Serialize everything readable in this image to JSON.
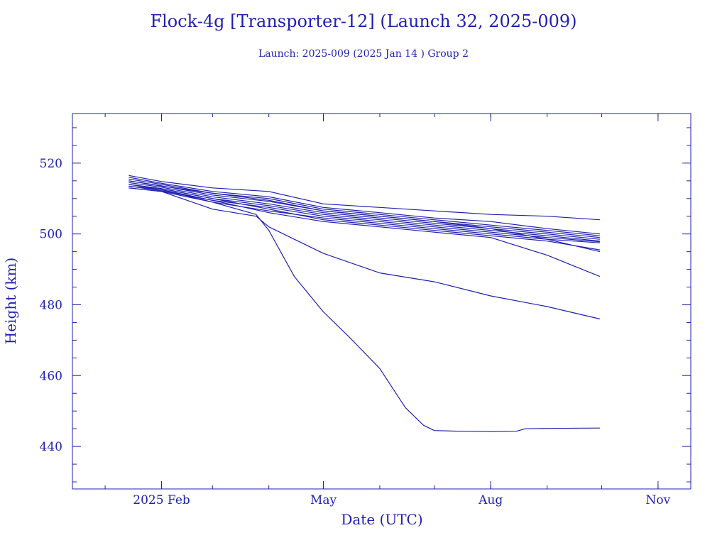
{
  "chart_data": {
    "type": "line",
    "title": "Flock-4g [Transporter-12] (Launch 32, 2025-009)",
    "subtitle": "Launch: 2025-009  (2025 Jan 14 )  Group 2",
    "xlabel": "Date (UTC)",
    "ylabel": "Height (km)",
    "xlim": [
      "2024-12-14",
      "2025-11-19"
    ],
    "ylim": [
      428,
      534
    ],
    "x_ticks": [
      {
        "label": "2025 Feb",
        "date": "2025-02-01"
      },
      {
        "label": "May",
        "date": "2025-05-01"
      },
      {
        "label": "Aug",
        "date": "2025-08-01"
      },
      {
        "label": "Nov",
        "date": "2025-11-01"
      }
    ],
    "y_ticks": [
      440,
      460,
      480,
      500,
      520
    ],
    "grid": false,
    "legend": "none",
    "line_color": "#1f1fb0",
    "series": [
      {
        "x": [
          "2025-01-14",
          "2025-02-01",
          "2025-03-01",
          "2025-04-01",
          "2025-05-01",
          "2025-06-01",
          "2025-07-01",
          "2025-08-01",
          "2025-09-01",
          "2025-09-30"
        ],
        "values": [
          516.5,
          514.8,
          513.0,
          512.0,
          508.5,
          507.5,
          506.5,
          505.5,
          505.0,
          504.0
        ]
      },
      {
        "x": [
          "2025-01-14",
          "2025-02-01",
          "2025-03-01",
          "2025-04-01",
          "2025-05-01",
          "2025-06-01",
          "2025-07-01",
          "2025-08-01",
          "2025-09-01",
          "2025-09-30"
        ],
        "values": [
          516.0,
          514.3,
          512.0,
          510.5,
          507.5,
          506.0,
          504.5,
          503.5,
          501.5,
          500.0
        ]
      },
      {
        "x": [
          "2025-01-14",
          "2025-02-01",
          "2025-03-01",
          "2025-04-01",
          "2025-05-01",
          "2025-06-01",
          "2025-07-01",
          "2025-08-01",
          "2025-09-01",
          "2025-09-30"
        ],
        "values": [
          515.5,
          514.0,
          511.5,
          510.0,
          507.0,
          505.5,
          504.0,
          502.5,
          501.0,
          499.5
        ]
      },
      {
        "x": [
          "2025-01-14",
          "2025-02-01",
          "2025-03-01",
          "2025-04-01",
          "2025-05-01",
          "2025-06-01",
          "2025-07-01",
          "2025-08-01",
          "2025-09-01",
          "2025-09-30"
        ],
        "values": [
          515.0,
          513.6,
          511.0,
          509.2,
          506.5,
          505.0,
          503.5,
          502.0,
          500.5,
          499.0
        ]
      },
      {
        "x": [
          "2025-01-14",
          "2025-02-01",
          "2025-03-01",
          "2025-04-01",
          "2025-05-01",
          "2025-06-01",
          "2025-07-01",
          "2025-08-01",
          "2025-09-01",
          "2025-09-30"
        ],
        "values": [
          514.5,
          513.2,
          510.5,
          508.5,
          506.0,
          504.5,
          503.0,
          501.5,
          500.0,
          498.5
        ]
      },
      {
        "x": [
          "2025-01-14",
          "2025-02-01",
          "2025-03-01",
          "2025-04-01",
          "2025-05-01",
          "2025-06-01",
          "2025-07-01",
          "2025-08-01",
          "2025-09-01",
          "2025-09-30"
        ],
        "values": [
          514.0,
          512.8,
          510.0,
          508.0,
          505.5,
          504.0,
          502.5,
          501.0,
          499.5,
          498.0
        ]
      },
      {
        "x": [
          "2025-01-14",
          "2025-02-01",
          "2025-03-01",
          "2025-04-01",
          "2025-05-01",
          "2025-06-01",
          "2025-07-01",
          "2025-08-01",
          "2025-09-01",
          "2025-09-30"
        ],
        "values": [
          513.5,
          512.5,
          509.5,
          507.5,
          505.0,
          503.5,
          502.0,
          500.5,
          499.0,
          497.8
        ]
      },
      {
        "x": [
          "2025-01-14",
          "2025-02-01",
          "2025-03-01",
          "2025-04-01",
          "2025-05-01",
          "2025-06-01",
          "2025-07-01",
          "2025-08-01",
          "2025-09-01",
          "2025-09-30"
        ],
        "values": [
          513.0,
          512.0,
          509.0,
          506.5,
          504.5,
          503.0,
          501.5,
          500.0,
          498.5,
          497.5
        ]
      },
      {
        "x": [
          "2025-01-14",
          "2025-02-01",
          "2025-03-01",
          "2025-04-01",
          "2025-05-01",
          "2025-06-01",
          "2025-07-01",
          "2025-08-01",
          "2025-09-01",
          "2025-09-30"
        ],
        "values": [
          515.0,
          513.5,
          511.5,
          509.5,
          506.5,
          505.0,
          503.5,
          501.5,
          498.5,
          495.0
        ]
      },
      {
        "x": [
          "2025-01-14",
          "2025-02-01",
          "2025-03-01",
          "2025-04-01",
          "2025-05-01",
          "2025-06-01",
          "2025-07-01",
          "2025-08-01",
          "2025-09-01",
          "2025-09-30"
        ],
        "values": [
          514.0,
          512.8,
          510.0,
          507.0,
          504.0,
          502.5,
          501.0,
          499.5,
          498.0,
          495.5
        ]
      },
      {
        "x": [
          "2025-01-14",
          "2025-02-01",
          "2025-03-01",
          "2025-04-01",
          "2025-05-01",
          "2025-06-01",
          "2025-07-01",
          "2025-08-01",
          "2025-09-01",
          "2025-09-30"
        ],
        "values": [
          513.5,
          512.2,
          509.5,
          506.0,
          503.5,
          502.0,
          500.5,
          499.0,
          494.0,
          488.0
        ]
      },
      {
        "x": [
          "2025-01-14",
          "2025-02-01",
          "2025-03-01",
          "2025-03-25",
          "2025-04-01",
          "2025-05-01",
          "2025-06-01",
          "2025-07-01",
          "2025-08-01",
          "2025-09-01",
          "2025-09-30"
        ],
        "values": [
          513.0,
          512.0,
          507.0,
          505.0,
          502.0,
          494.5,
          489.0,
          486.5,
          482.5,
          479.5,
          476.0
        ]
      },
      {
        "x": [
          "2025-01-14",
          "2025-02-01",
          "2025-03-01",
          "2025-03-25",
          "2025-04-01",
          "2025-04-15",
          "2025-05-01",
          "2025-05-15",
          "2025-06-01",
          "2025-06-15",
          "2025-06-25",
          "2025-07-01",
          "2025-07-15",
          "2025-08-01",
          "2025-08-15",
          "2025-08-20",
          "2025-09-01",
          "2025-09-30"
        ],
        "values": [
          514.0,
          512.5,
          509.0,
          505.5,
          501.0,
          488.0,
          478.0,
          471.0,
          462.0,
          451.0,
          446.0,
          444.5,
          444.3,
          444.2,
          444.3,
          445.0,
          445.1,
          445.2
        ]
      }
    ]
  }
}
